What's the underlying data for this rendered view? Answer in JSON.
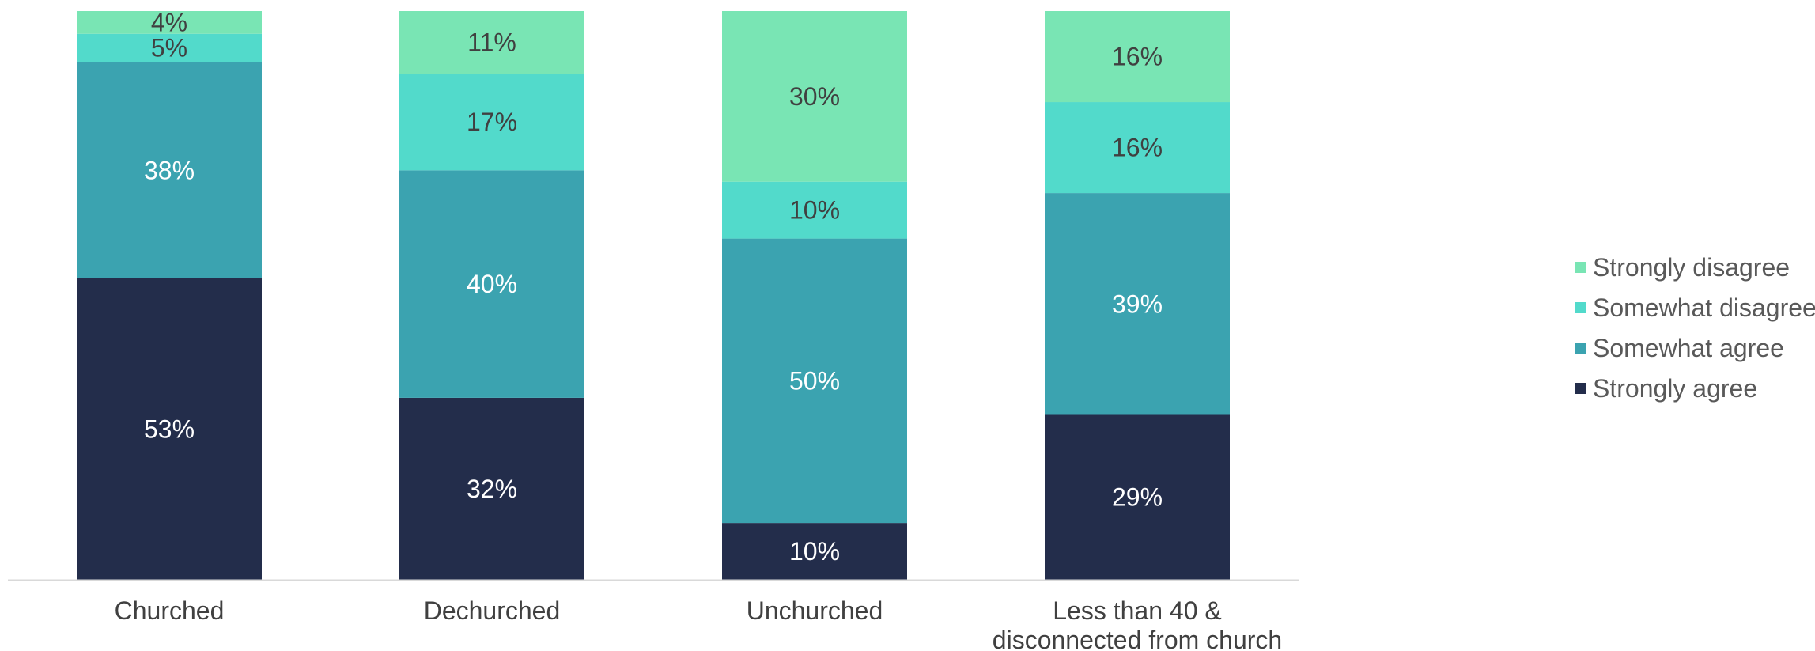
{
  "chart_data": {
    "type": "bar",
    "stacked": true,
    "normalized_percent": true,
    "categories": [
      [
        "Churched"
      ],
      [
        "Dechurched"
      ],
      [
        "Unchurched"
      ],
      [
        "Less than 40 &",
        "disconnected from church"
      ]
    ],
    "series": [
      {
        "name": "Strongly agree",
        "values": [
          53,
          32,
          10,
          29
        ],
        "labels": [
          "53%",
          "32%",
          "10%",
          "29%"
        ]
      },
      {
        "name": "Somewhat agree",
        "values": [
          38,
          40,
          50,
          39
        ],
        "labels": [
          "38%",
          "40%",
          "50%",
          "39%"
        ]
      },
      {
        "name": "Somewhat disagree",
        "values": [
          5,
          17,
          10,
          16
        ],
        "labels": [
          "5%",
          "17%",
          "10%",
          "16%"
        ]
      },
      {
        "name": "Strongly disagree",
        "values": [
          4,
          11,
          30,
          16
        ],
        "labels": [
          "4%",
          "11%",
          "30%",
          "16%"
        ]
      }
    ],
    "legend": {
      "position": "right",
      "order": [
        "Strongly disagree",
        "Somewhat disagree",
        "Somewhat agree",
        "Strongly agree"
      ]
    },
    "ylim": [
      0,
      100
    ],
    "grid": false,
    "title": "",
    "xlabel": "",
    "ylabel": ""
  },
  "colors": {
    "Strongly agree": "#232d4b",
    "Somewhat agree": "#3ba3b0",
    "Somewhat disagree": "#52dacb",
    "Strongly disagree": "#79e5b4",
    "axis": "#d9d9d9",
    "label_on_dark": "#ffffff",
    "label_on_light": "#404040"
  }
}
